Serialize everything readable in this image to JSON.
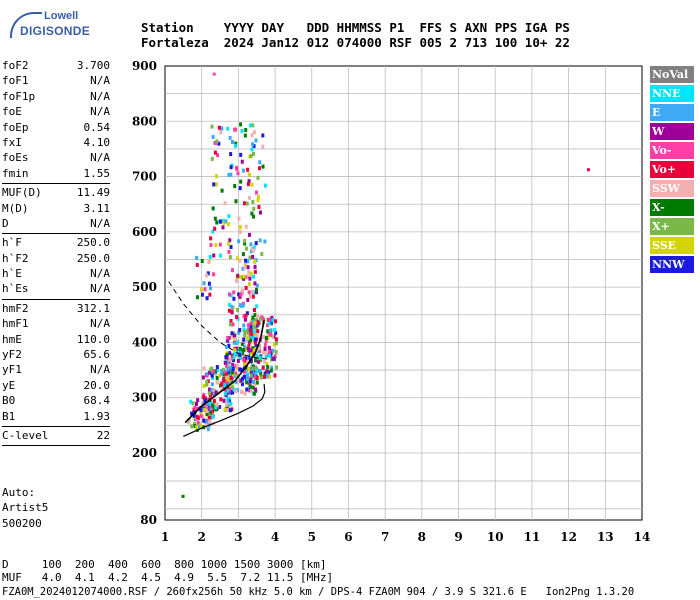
{
  "logo": {
    "line1": "Lowell",
    "line2": "DIGISONDE"
  },
  "header": {
    "line1": "Station    YYYY DAY   DDD HHMMSS P1  FFS S AXN PPS IGA PS",
    "line2": "Fortaleza  2024 Jan12 012 074000 RSF 005 2 713 100 10+ 22"
  },
  "params": [
    {
      "name": "foF2",
      "value": "3.700"
    },
    {
      "name": "foF1",
      "value": "N/A"
    },
    {
      "name": "foF1p",
      "value": "N/A"
    },
    {
      "name": "foE",
      "value": "N/A"
    },
    {
      "name": "foEp",
      "value": "0.54"
    },
    {
      "name": "fxI",
      "value": "4.10"
    },
    {
      "name": "foEs",
      "value": "N/A"
    },
    {
      "name": "fmin",
      "value": "1.55"
    },
    {
      "sep": true
    },
    {
      "name": "MUF(D)",
      "value": "11.49"
    },
    {
      "name": "M(D)",
      "value": "3.11"
    },
    {
      "name": "D",
      "value": "N/A"
    },
    {
      "sep": true
    },
    {
      "name": "h`F",
      "value": "250.0"
    },
    {
      "name": "h`F2",
      "value": "250.0"
    },
    {
      "name": "h`E",
      "value": "N/A"
    },
    {
      "name": "h`Es",
      "value": "N/A"
    },
    {
      "sep": true
    },
    {
      "name": "hmF2",
      "value": "312.1"
    },
    {
      "name": "hmF1",
      "value": "N/A"
    },
    {
      "name": "hmE",
      "value": "110.0"
    },
    {
      "name": "yF2",
      "value": "65.6"
    },
    {
      "name": "yF1",
      "value": "N/A"
    },
    {
      "name": "yE",
      "value": "20.0"
    },
    {
      "name": "B0",
      "value": "68.4"
    },
    {
      "name": "B1",
      "value": "1.93"
    },
    {
      "sep": true
    },
    {
      "name": "C-level",
      "value": "22"
    },
    {
      "sep": true
    }
  ],
  "auto": {
    "line1": "Auto:",
    "line2": "Artist5",
    "line3": "500200"
  },
  "bottom": {
    "line1": "D     100  200  400  600  800 1000 1500 3000 [km]",
    "line2": "MUF   4.0  4.1  4.2  4.5  4.9  5.5  7.2 11.5 [MHz]"
  },
  "footer": "FZA0M_2024012074000.RSF / 260fx256h 50 kHz 5.0 km / DPS-4 FZA0M 904 / 3.9 S 321.6 E   Ion2Png 1.3.20",
  "legend": [
    {
      "label": "NoVal",
      "color": "#808080"
    },
    {
      "label": "NNE",
      "color": "#00e5ff"
    },
    {
      "label": "E",
      "color": "#3fa9f5"
    },
    {
      "label": "W",
      "color": "#a0009a"
    },
    {
      "label": "Vo-",
      "color": "#ff3fa6"
    },
    {
      "label": "Vo+",
      "color": "#e8003c"
    },
    {
      "label": "SSW",
      "color": "#f4b0b0"
    },
    {
      "label": "X-",
      "color": "#007a00"
    },
    {
      "label": "X+",
      "color": "#7ab84a"
    },
    {
      "label": "SSE",
      "color": "#d4d400"
    },
    {
      "label": "NNW",
      "color": "#1a1ae0"
    }
  ],
  "chart_data": {
    "type": "scatter",
    "title": "",
    "xlabel": "",
    "ylabel": "",
    "xlim": [
      1,
      14
    ],
    "ylim": [
      80,
      900
    ],
    "x_ticks": [
      "1",
      "2",
      "3",
      "4",
      "5",
      "6",
      "7",
      "8",
      "9",
      "10",
      "11",
      "12",
      "13",
      "14"
    ],
    "y_ticks": [
      {
        "v": 900,
        "label": "900"
      },
      {
        "v": 800,
        "label": "800"
      },
      {
        "v": 700,
        "label": "700"
      },
      {
        "v": 600,
        "label": "600"
      },
      {
        "v": 500,
        "label": "500"
      },
      {
        "v": 400,
        "label": "400"
      },
      {
        "v": 300,
        "label": "300"
      },
      {
        "v": 200,
        "label": "200"
      },
      {
        "v": 80,
        "label": "80"
      }
    ],
    "grid": true,
    "solid_trace": [
      [
        1.5,
        230
      ],
      [
        2.0,
        245
      ],
      [
        2.5,
        258
      ],
      [
        3.0,
        272
      ],
      [
        3.4,
        285
      ],
      [
        3.65,
        298
      ],
      [
        3.72,
        310
      ],
      [
        3.7,
        325
      ]
    ],
    "fit_trace": [
      [
        1.55,
        255
      ],
      [
        2.0,
        285
      ],
      [
        2.5,
        310
      ],
      [
        2.9,
        330
      ],
      [
        3.2,
        355
      ],
      [
        3.45,
        380
      ],
      [
        3.6,
        405
      ],
      [
        3.7,
        440
      ]
    ],
    "dashed_trace": [
      [
        1.1,
        510
      ],
      [
        1.5,
        470
      ],
      [
        2.0,
        430
      ],
      [
        2.5,
        400
      ],
      [
        3.0,
        380
      ],
      [
        3.5,
        372
      ],
      [
        3.8,
        370
      ]
    ],
    "clusters": [
      {
        "f": [
          1.6,
          2.3
        ],
        "h": [
          245,
          300
        ],
        "n": 70
      },
      {
        "f": [
          2.0,
          2.8
        ],
        "h": [
          280,
          360
        ],
        "n": 130
      },
      {
        "f": [
          2.6,
          3.5
        ],
        "h": [
          310,
          420
        ],
        "n": 200
      },
      {
        "f": [
          3.2,
          4.0
        ],
        "h": [
          340,
          450
        ],
        "n": 150
      },
      {
        "f": [
          2.7,
          3.5
        ],
        "h": [
          420,
          560
        ],
        "n": 90
      },
      {
        "f": [
          2.2,
          3.7
        ],
        "h": [
          560,
          800
        ],
        "n": 120
      },
      {
        "f": [
          1.8,
          2.3
        ],
        "h": [
          480,
          560
        ],
        "n": 18
      }
    ],
    "outliers": [
      {
        "f": 2.3,
        "h": 888,
        "c": "#ff3fa6"
      },
      {
        "f": 12.5,
        "h": 715,
        "c": "#e8003c"
      },
      {
        "f": 1.45,
        "h": 125,
        "c": "#007a00"
      }
    ]
  }
}
